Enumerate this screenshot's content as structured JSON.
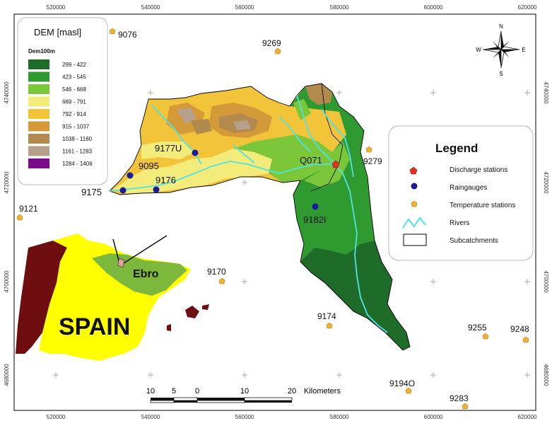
{
  "axes": {
    "x_ticks": [
      "520000",
      "540000",
      "560000",
      "580000",
      "600000",
      "620000"
    ],
    "y_ticks": [
      "4740000",
      "4720000",
      "4700000",
      "4680000"
    ]
  },
  "dem_legend": {
    "title": "DEM [masl]",
    "subtitle": "Dem100m",
    "classes": [
      {
        "label": "299 - 422",
        "color": "#1e6b2a"
      },
      {
        "label": "423 - 545",
        "color": "#2f9a2f"
      },
      {
        "label": "546 - 668",
        "color": "#7cc63a"
      },
      {
        "label": "669 - 791",
        "color": "#f3ec7a"
      },
      {
        "label": "792 - 914",
        "color": "#f2c43a"
      },
      {
        "label": "915 - 1037",
        "color": "#d49a3a"
      },
      {
        "label": "1038 - 1160",
        "color": "#b28a4e"
      },
      {
        "label": "1161 - 1283",
        "color": "#b6a08c"
      },
      {
        "label": "1284 - 1406",
        "color": "#7a0a8a"
      }
    ]
  },
  "legend": {
    "title": "Legend",
    "items": [
      {
        "label": "Discharge stations",
        "icon": "red-pentagon-icon"
      },
      {
        "label": "Raingauges",
        "icon": "blue-circle-icon"
      },
      {
        "label": "Temperature stations",
        "icon": "orange-pentagon-icon"
      },
      {
        "label": "Rivers",
        "icon": "river-line-icon"
      },
      {
        "label": "Subcatchments",
        "icon": "subcatchment-box-icon"
      }
    ]
  },
  "compass": {
    "n": "N",
    "s": "S",
    "e": "E",
    "w": "W"
  },
  "scale_bar": {
    "labels": [
      "10",
      "5",
      "0",
      "10",
      "20"
    ],
    "unit": "Kilometers"
  },
  "inset": {
    "country": "SPAIN",
    "basin": "Ebro"
  },
  "discharge_stations": [
    "Q071"
  ],
  "raingauges": [
    "9177U",
    "9095",
    "9176",
    "9175",
    "9182I"
  ],
  "temperature_stations": [
    "9076",
    "9269",
    "9279",
    "9121",
    "9170",
    "9174",
    "9255",
    "9248",
    "9194O",
    "9283"
  ],
  "colors": {
    "river": "#4fe3e3",
    "discharge": "#e03020",
    "raingauge": "#1a1a9a",
    "temperature": "#f0b030"
  }
}
